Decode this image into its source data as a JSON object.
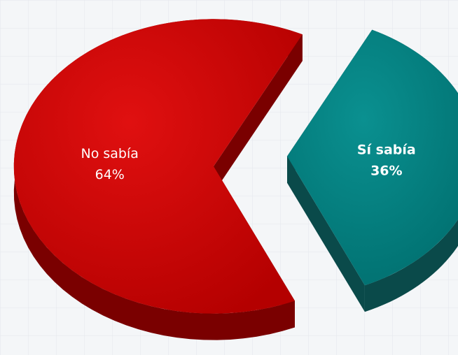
{
  "chart_data": {
    "type": "pie",
    "title": "",
    "slices": [
      {
        "name": "No sabía",
        "value": 64,
        "label": "64%",
        "color": "#cc0000",
        "side_color": "#7a0000"
      },
      {
        "name": "Sí sabía",
        "value": 36,
        "label": "36%",
        "color": "#008080",
        "side_color": "#0a4a4a"
      }
    ],
    "exploded": "Sí sabía",
    "style": "3d"
  }
}
